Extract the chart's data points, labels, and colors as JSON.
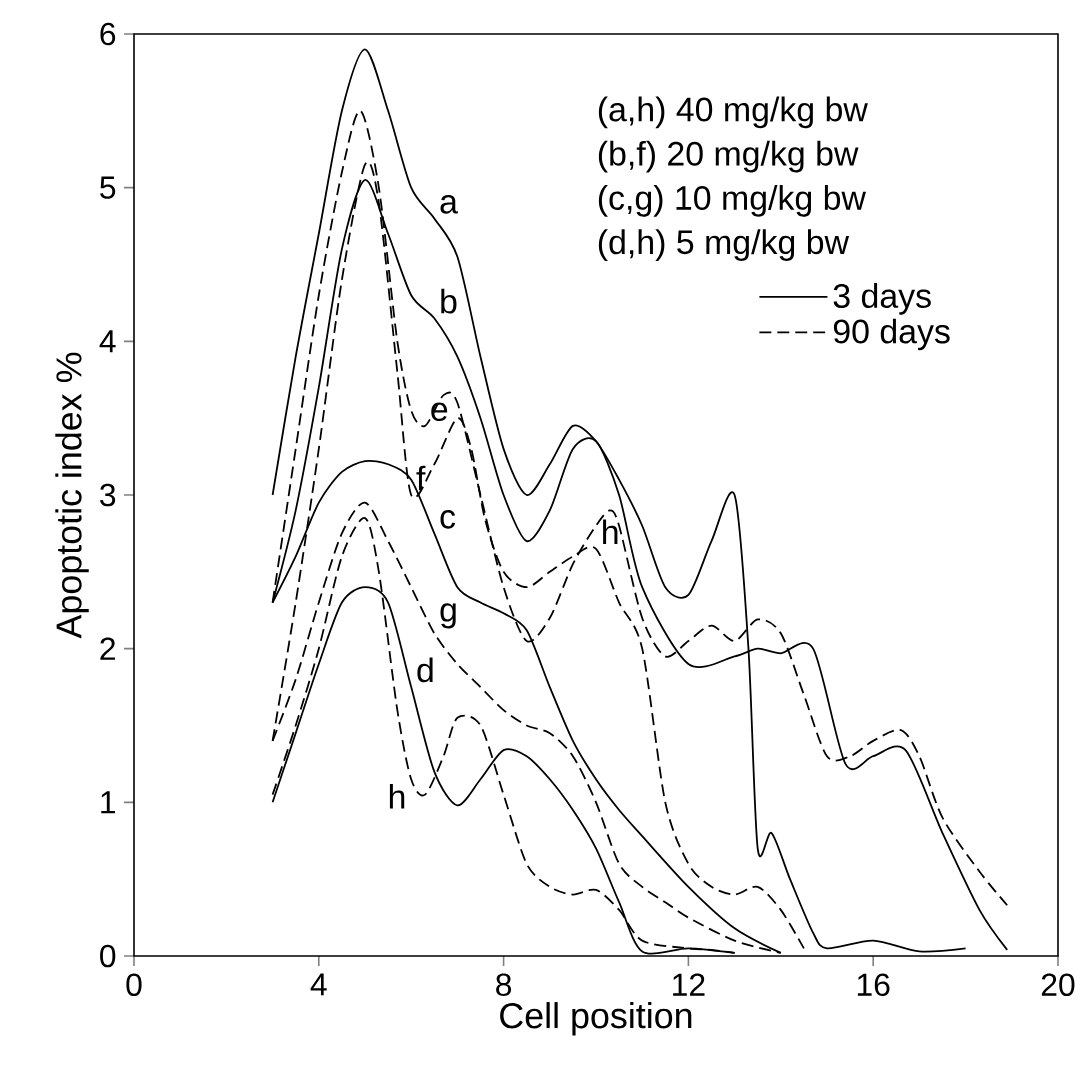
{
  "chart_data": {
    "type": "line",
    "xlabel": "Cell position",
    "ylabel": "Apoptotic index %",
    "xlim": [
      0,
      20
    ],
    "ylim": [
      0,
      6
    ],
    "xticks": [
      0,
      4,
      8,
      12,
      16,
      20
    ],
    "yticks": [
      0,
      1,
      2,
      3,
      4,
      5,
      6
    ],
    "grid": false,
    "marker": "none",
    "legend": "top right",
    "series": [
      {
        "name": "3 days",
        "color": "#000000",
        "line_style": "solid",
        "x": [
          3,
          3.5,
          4,
          4.5,
          5,
          5.5,
          6,
          6.5,
          7,
          7.5,
          8,
          8.5,
          9,
          9.5,
          10,
          10.5,
          11,
          11.5,
          12,
          12.5,
          13,
          13.3,
          13.5,
          13.8,
          14.2,
          14.7,
          15,
          16,
          17,
          18
        ],
        "values": [
          3.0,
          3.9,
          4.7,
          5.5,
          5.9,
          5.5,
          5.0,
          4.8,
          4.55,
          3.9,
          3.3,
          3.0,
          3.2,
          3.45,
          3.35,
          3.1,
          2.8,
          2.4,
          2.35,
          2.7,
          3.0,
          2.0,
          0.7,
          0.8,
          0.5,
          0.15,
          0.05,
          0.1,
          0.03,
          0.05
        ]
      },
      {
        "color": "#000000",
        "line_style": "solid",
        "x": [
          3,
          3.5,
          4,
          4.5,
          5,
          5.5,
          6,
          6.5,
          7,
          7.5,
          8,
          8.5,
          9,
          9.5,
          10,
          10.5,
          11,
          12,
          13,
          13.5,
          14,
          14.7,
          15.4,
          16,
          16.7,
          17.5,
          18.3,
          18.9
        ],
        "values": [
          2.3,
          2.9,
          3.7,
          4.6,
          5.05,
          4.7,
          4.3,
          4.15,
          3.9,
          3.5,
          3.0,
          2.7,
          2.9,
          3.3,
          3.35,
          3.0,
          2.4,
          1.9,
          1.95,
          2.0,
          1.97,
          2.0,
          1.25,
          1.3,
          1.34,
          0.8,
          0.3,
          0.04
        ]
      },
      {
        "color": "#000000",
        "line_style": "solid",
        "x": [
          3,
          3.5,
          4,
          4.5,
          5,
          5.5,
          6,
          6.5,
          7,
          7.5,
          8,
          8.5,
          9,
          9.5,
          10,
          10.5,
          11,
          12,
          13,
          14
        ],
        "values": [
          2.3,
          2.6,
          2.95,
          3.15,
          3.22,
          3.2,
          3.1,
          2.75,
          2.4,
          2.3,
          2.23,
          2.12,
          1.75,
          1.4,
          1.15,
          0.95,
          0.78,
          0.45,
          0.18,
          0.02
        ]
      },
      {
        "color": "#000000",
        "line_style": "solid",
        "x": [
          3,
          3.5,
          4,
          4.5,
          5,
          5.5,
          6,
          6.5,
          7,
          7.5,
          8,
          8.5,
          9,
          9.5,
          10,
          10.5,
          11,
          12,
          13
        ],
        "values": [
          1.0,
          1.45,
          1.9,
          2.3,
          2.4,
          2.3,
          1.75,
          1.2,
          0.98,
          1.15,
          1.34,
          1.3,
          1.15,
          0.95,
          0.7,
          0.35,
          0.03,
          0.05,
          0.02
        ]
      },
      {
        "name": "90 days",
        "color": "#000000",
        "line_style": "dashed",
        "x": [
          3,
          3.5,
          4,
          4.5,
          4.9,
          5.3,
          5.7,
          6,
          6.3,
          6.7,
          7,
          7.5,
          8,
          8.5,
          9,
          9.5,
          10,
          10.3,
          10.5,
          11,
          11.5,
          12,
          12.5,
          13,
          13.5,
          14,
          14.5,
          15,
          15.5,
          16,
          16.6,
          17,
          17.5,
          18.3,
          18.9
        ],
        "values": [
          2.3,
          3.3,
          4.3,
          5.1,
          5.5,
          5.0,
          4.0,
          3.55,
          3.45,
          3.65,
          3.6,
          3.0,
          2.4,
          2.05,
          2.2,
          2.55,
          2.8,
          2.9,
          2.8,
          2.2,
          1.95,
          2.05,
          2.15,
          2.05,
          2.19,
          2.1,
          1.7,
          1.3,
          1.3,
          1.4,
          1.47,
          1.3,
          0.9,
          0.55,
          0.33
        ]
      },
      {
        "color": "#000000",
        "line_style": "dashed",
        "x": [
          3,
          3.5,
          4,
          4.5,
          5,
          5.3,
          5.7,
          6,
          6.5,
          7,
          7.3,
          7.6,
          8,
          8.5,
          9,
          9.5,
          10,
          10.5,
          11,
          11.5,
          12,
          12.5,
          13,
          13.5,
          14,
          14.5
        ],
        "values": [
          1.4,
          2.3,
          3.3,
          4.4,
          5.15,
          4.9,
          3.8,
          3.0,
          3.2,
          3.5,
          3.3,
          2.84,
          2.5,
          2.4,
          2.5,
          2.6,
          2.65,
          2.3,
          2.0,
          1.0,
          0.6,
          0.45,
          0.4,
          0.45,
          0.3,
          0.05
        ]
      },
      {
        "color": "#000000",
        "line_style": "dashed",
        "x": [
          3,
          3.5,
          4,
          4.5,
          5,
          5.5,
          6,
          6.5,
          7,
          7.5,
          8,
          8.5,
          9,
          9.5,
          10,
          10.5,
          11,
          11.5,
          12,
          13,
          14
        ],
        "values": [
          1.4,
          1.8,
          2.3,
          2.75,
          2.95,
          2.7,
          2.4,
          2.1,
          1.9,
          1.75,
          1.6,
          1.5,
          1.45,
          1.3,
          1.0,
          0.6,
          0.45,
          0.35,
          0.25,
          0.1,
          0.02
        ]
      },
      {
        "color": "#000000",
        "line_style": "dashed",
        "x": [
          3,
          3.5,
          4,
          4.5,
          5,
          5.3,
          5.7,
          6,
          6.3,
          6.7,
          7,
          7.5,
          8,
          8.5,
          9,
          9.5,
          10,
          10.5,
          11,
          12,
          12.5,
          13
        ],
        "values": [
          1.05,
          1.5,
          2.0,
          2.6,
          2.85,
          2.5,
          1.6,
          1.15,
          1.05,
          1.3,
          1.55,
          1.5,
          1.05,
          0.6,
          0.45,
          0.4,
          0.43,
          0.3,
          0.1,
          0.05,
          0.04,
          0.02
        ]
      }
    ],
    "annotations": [
      {
        "text": "a",
        "x": 6.5,
        "y": 4.8
      },
      {
        "text": "b",
        "x": 6.5,
        "y": 4.15
      },
      {
        "text": "e",
        "x": 6.3,
        "y": 3.45
      },
      {
        "text": "f",
        "x": 6,
        "y": 3.0
      },
      {
        "text": "c",
        "x": 6.5,
        "y": 2.75
      },
      {
        "text": "g",
        "x": 6.5,
        "y": 2.1
      },
      {
        "text": "d",
        "x": 6,
        "y": 1.75
      },
      {
        "text": "h",
        "x": 6,
        "y": 1.15
      },
      {
        "text": "h",
        "x": 10,
        "y": 2.65
      },
      "(a,h) 40 mg/kg bw",
      "(b,f)  20 mg/kg bw",
      "(c,g) 10 mg/kg bw",
      "(d,h)   5 mg/kg bw"
    ]
  }
}
